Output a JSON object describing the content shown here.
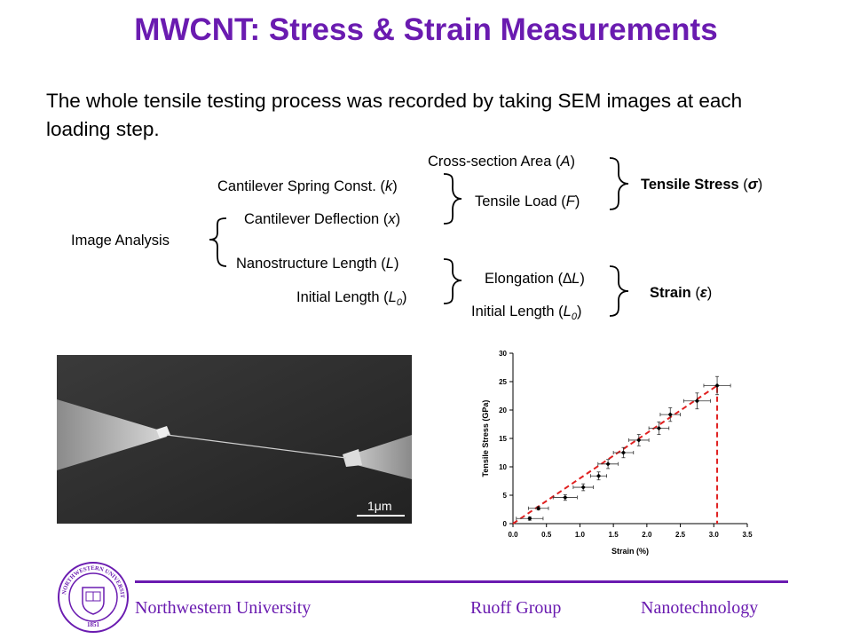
{
  "title": "MWCNT: Stress & Strain Measurements",
  "intro": "The whole tensile testing process was recorded by taking SEM images at each loading step.",
  "flow": {
    "image_analysis": "Image Analysis",
    "spring_const": "Cantilever Spring Const.",
    "spring_const_sym": "k",
    "deflection": "Cantilever Deflection",
    "deflection_sym": "x",
    "nano_length": "Nanostructure Length",
    "nano_length_sym": "L",
    "initial_length": "Initial Length",
    "initial_length_sym": "L",
    "cross_section": "Cross-section Area",
    "cross_section_sym": "A",
    "tensile_load": "Tensile Load",
    "tensile_load_sym": "F",
    "elongation": "Elongation",
    "elongation_sym": "∆L",
    "initial_length2": "Initial Length",
    "initial_length2_sym": "L",
    "tensile_stress": "Tensile Stress",
    "tensile_stress_sym": "σ",
    "strain": "Strain",
    "strain_sym": "ε",
    "subscript_zero": "0"
  },
  "sem": {
    "scale_label": "1μm"
  },
  "chart_data": {
    "type": "scatter",
    "xlabel": "Strain (%)",
    "ylabel": "Tensile Stress (GPa)",
    "xlim": [
      0.0,
      3.5
    ],
    "ylim": [
      0,
      30
    ],
    "xticks": [
      "0.0",
      "0.5",
      "1.0",
      "1.5",
      "2.0",
      "2.5",
      "3.0",
      "3.5"
    ],
    "yticks": [
      "0",
      "5",
      "10",
      "15",
      "20",
      "25",
      "30"
    ],
    "points": [
      {
        "x": 0.25,
        "y": 0.9,
        "xerr": 0.2,
        "yerr": 0.3
      },
      {
        "x": 0.38,
        "y": 2.7,
        "xerr": 0.15,
        "yerr": 0.3
      },
      {
        "x": 0.78,
        "y": 4.6,
        "xerr": 0.18,
        "yerr": 0.5
      },
      {
        "x": 1.05,
        "y": 6.4,
        "xerr": 0.15,
        "yerr": 0.6
      },
      {
        "x": 1.28,
        "y": 8.4,
        "xerr": 0.12,
        "yerr": 0.7
      },
      {
        "x": 1.42,
        "y": 10.5,
        "xerr": 0.15,
        "yerr": 0.8
      },
      {
        "x": 1.65,
        "y": 12.5,
        "xerr": 0.15,
        "yerr": 0.9
      },
      {
        "x": 1.88,
        "y": 14.7,
        "xerr": 0.15,
        "yerr": 1.0
      },
      {
        "x": 2.18,
        "y": 16.8,
        "xerr": 0.15,
        "yerr": 1.1
      },
      {
        "x": 2.35,
        "y": 19.2,
        "xerr": 0.15,
        "yerr": 1.2
      },
      {
        "x": 2.75,
        "y": 21.6,
        "xerr": 0.2,
        "yerr": 1.4
      },
      {
        "x": 3.05,
        "y": 24.3,
        "xerr": 0.2,
        "yerr": 1.6
      }
    ],
    "fit_line": [
      [
        0.0,
        0.0
      ],
      [
        3.05,
        24.3
      ],
      [
        3.05,
        0.0
      ]
    ],
    "colors": {
      "fit": "#e02020",
      "points": "#000000"
    }
  },
  "footer": {
    "university": "Northwestern University",
    "group": "Ruoff Group",
    "topic": "Nanotechnology",
    "seal_top": "NORTHWESTERN UNIVERSITY",
    "seal_year": "1851"
  },
  "colors": {
    "accent": "#6a1bb0"
  }
}
